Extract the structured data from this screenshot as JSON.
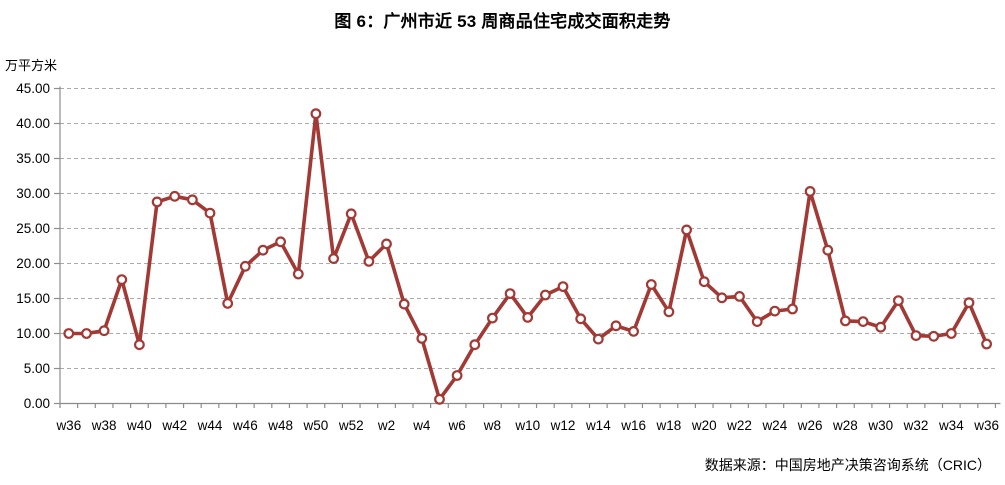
{
  "title": "图 6：广州市近 53 周商品住宅成交面积走势",
  "source": "数据来源：中国房地产决策咨询系统（CRIC）",
  "chart_data": {
    "type": "line",
    "title": "图 6：广州市近 53 周商品住宅成交面积走势",
    "xlabel": "",
    "ylabel": "万平方米",
    "ylim": [
      0,
      45
    ],
    "ytick_step": 5,
    "ytick_format": "two-decimals",
    "xtick_label_every": 2,
    "grid": "horizontal dashed",
    "legend_position": "none",
    "line_color": "#A33934",
    "marker_style": "circle, white fill, red outline",
    "grid_color": "#ababab",
    "axis_color": "#8c8c8c",
    "categories": [
      "w36",
      "w37",
      "w38",
      "w39",
      "w40",
      "w41",
      "w42",
      "w43",
      "w44",
      "w45",
      "w46",
      "w47",
      "w48",
      "w49",
      "w50",
      "w51",
      "w52",
      "w1",
      "w2",
      "w3",
      "w4",
      "w5",
      "w6",
      "w7",
      "w8",
      "w9",
      "w10",
      "w11",
      "w12",
      "w13",
      "w14",
      "w15",
      "w16",
      "w17",
      "w18",
      "w19",
      "w20",
      "w21",
      "w22",
      "w23",
      "w24",
      "w25",
      "w26",
      "w27",
      "w28",
      "w29",
      "w30",
      "w31",
      "w32",
      "w33",
      "w34",
      "w35",
      "w36"
    ],
    "values": [
      10.0,
      10.0,
      10.4,
      17.7,
      8.4,
      28.8,
      29.6,
      29.1,
      27.2,
      14.3,
      19.6,
      21.9,
      23.1,
      18.5,
      41.4,
      20.7,
      27.1,
      20.3,
      22.8,
      14.2,
      9.3,
      0.6,
      4.0,
      8.4,
      12.2,
      15.7,
      12.3,
      15.5,
      16.7,
      12.1,
      9.2,
      11.1,
      10.3,
      17.0,
      13.1,
      24.8,
      17.4,
      15.1,
      15.3,
      11.7,
      13.2,
      13.5,
      30.3,
      21.9,
      11.8,
      11.7,
      10.9,
      14.7,
      9.7,
      9.6,
      10.0,
      14.4,
      8.5
    ]
  }
}
